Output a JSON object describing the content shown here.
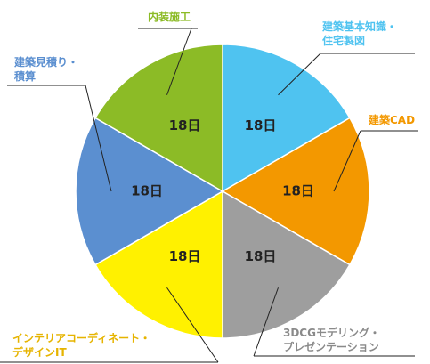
{
  "chart_data": {
    "type": "pie",
    "categories": [
      "建築基本知識・\n住宅製図",
      "建築CAD",
      "3DCGモデリング・\nプレゼンテーション",
      "インテリアコーディネート・\nデザインIT",
      "建築見積り・\n積算",
      "内装施工"
    ],
    "values": [
      18,
      18,
      18,
      18,
      18,
      18
    ],
    "value_labels": [
      "18日",
      "18日",
      "18日",
      "18日",
      "18日",
      "18日"
    ],
    "colors": [
      "#4fc3f0",
      "#f39800",
      "#9e9e9e",
      "#fff100",
      "#5b8fd0",
      "#8cbb26"
    ],
    "label_colors": [
      "#4fc3f0",
      "#f39800",
      "#8a8a8a",
      "#e6b400",
      "#5b8fd0",
      "#8cbb26"
    ]
  }
}
